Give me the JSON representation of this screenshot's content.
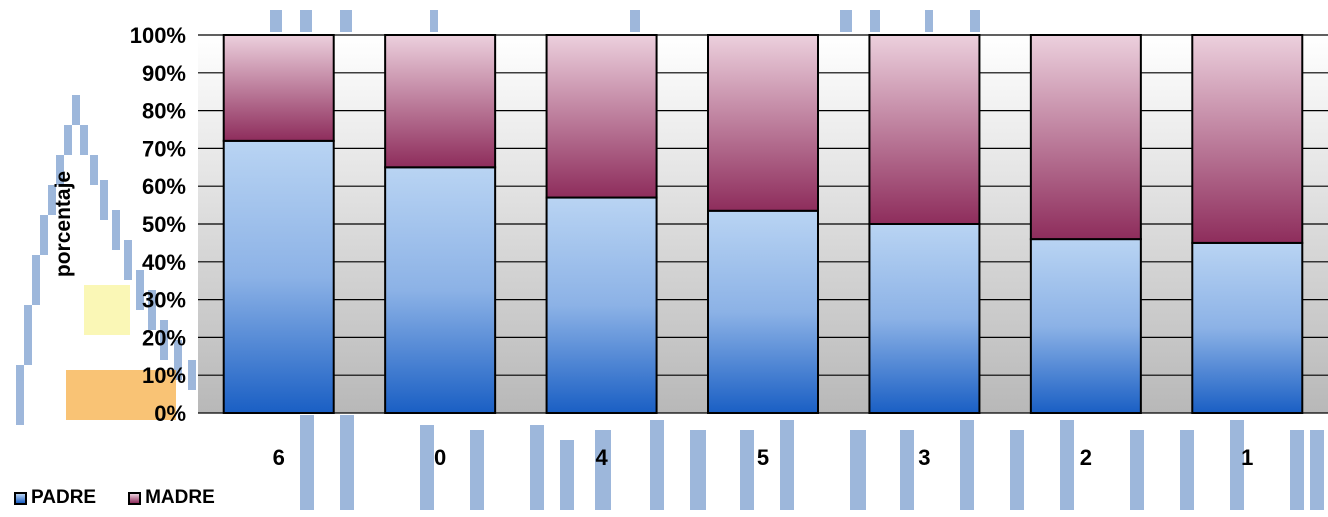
{
  "chart_data": {
    "type": "bar",
    "stacked": true,
    "percent": true,
    "categories": [
      "6",
      "0",
      "4",
      "5",
      "3",
      "2",
      "1"
    ],
    "series": [
      {
        "name": "PADRE",
        "values": [
          72,
          65,
          57,
          53.5,
          50,
          46,
          45
        ],
        "color": "#5b8fd6"
      },
      {
        "name": "MADRE",
        "values": [
          28,
          35,
          43,
          46.5,
          50,
          54,
          55
        ],
        "color": "#9c3a68"
      }
    ],
    "ylabel": "porcentaje",
    "xlabel": "",
    "ylim": [
      0,
      100
    ],
    "yticks": [
      "0%",
      "10%",
      "20%",
      "30%",
      "40%",
      "50%",
      "60%",
      "70%",
      "80%",
      "90%",
      "100%"
    ],
    "grid": true,
    "legend": "bottom-left"
  },
  "legend": {
    "padre": "PADRE",
    "madre": "MADRE"
  },
  "colors": {
    "padre": "#5b8fd6",
    "madre": "#9c3a68",
    "plot_bg": "#d8d8d8"
  }
}
